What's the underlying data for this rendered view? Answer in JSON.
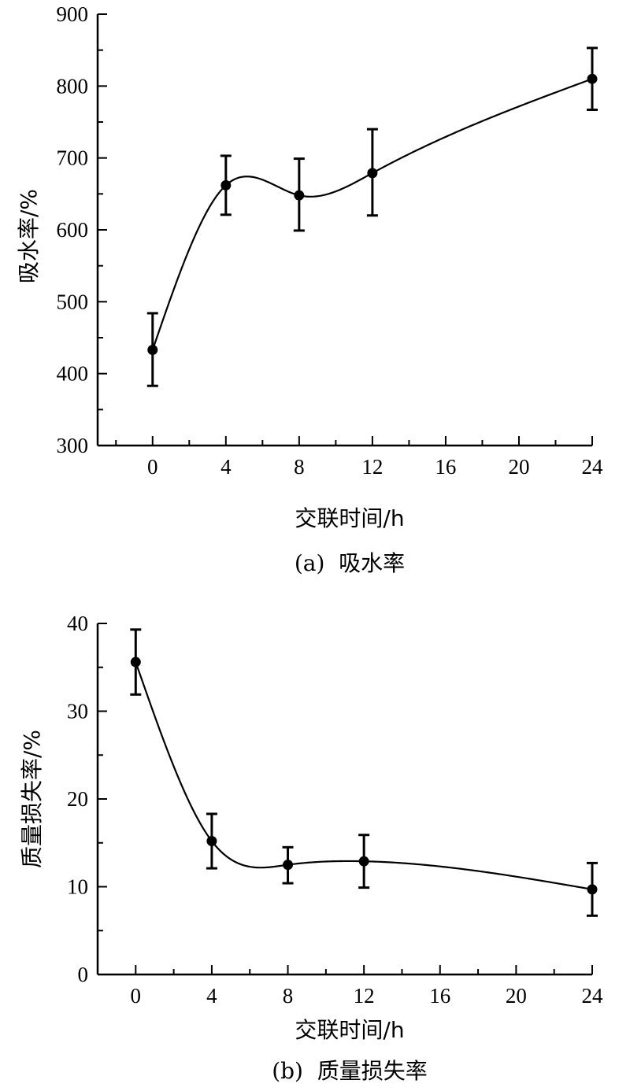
{
  "chart_data": [
    {
      "id": "a",
      "type": "line",
      "caption": "(a)  吸水率",
      "xlabel": "交联时间/h",
      "ylabel": "吸水率/%",
      "xlim": [
        -3,
        24
      ],
      "ylim": [
        300,
        900
      ],
      "xticks": [
        0,
        4,
        8,
        12,
        16,
        20,
        24
      ],
      "yticks": [
        300,
        400,
        500,
        600,
        700,
        800,
        900
      ],
      "x_minor_step": 2,
      "y_minor_step": 50,
      "smooth": true,
      "grid": false,
      "series": [
        {
          "x": [
            0,
            4,
            8,
            12,
            24
          ],
          "values": [
            433,
            662,
            648,
            679,
            810
          ],
          "error": [
            [
              50,
              51
            ],
            [
              41,
              41
            ],
            [
              49,
              51
            ],
            [
              59,
              61
            ],
            [
              43,
              43
            ]
          ]
        }
      ]
    },
    {
      "id": "b",
      "type": "line",
      "caption": "(b)  质量损失率",
      "xlabel": "交联时间/h",
      "ylabel": "质量损失率/%",
      "xlim": [
        -2,
        24
      ],
      "ylim": [
        0,
        40
      ],
      "xticks": [
        0,
        4,
        8,
        12,
        16,
        20,
        24
      ],
      "yticks": [
        0,
        10,
        20,
        30,
        40
      ],
      "x_minor_step": 2,
      "y_minor_step": 5,
      "smooth": true,
      "grid": false,
      "series": [
        {
          "x": [
            0,
            4,
            8,
            12,
            24
          ],
          "values": [
            35.6,
            15.2,
            12.5,
            12.9,
            9.7
          ],
          "error": [
            [
              3.7,
              3.7
            ],
            [
              3.1,
              3.1
            ],
            [
              2.1,
              2.0
            ],
            [
              3.0,
              3.0
            ],
            [
              3.0,
              3.0
            ]
          ]
        }
      ]
    }
  ]
}
